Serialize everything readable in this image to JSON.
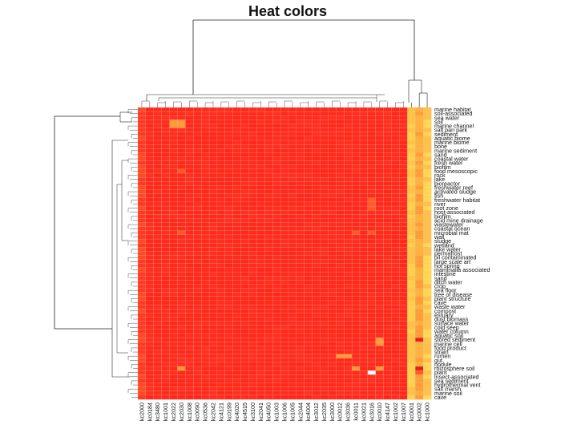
{
  "chart_data": {
    "type": "heatmap",
    "title": "Heat colors",
    "xlabel": "",
    "ylabel": "",
    "grid": true,
    "legend": "none",
    "colors": {
      "low": "#ff2a1c",
      "mid": "#ff8a2c",
      "high": "#ffd24a",
      "max": "#ffffff",
      "gridline": "#f7b0a6",
      "dendrogram": "#222222"
    },
    "columns": [
      "kc2000",
      "kc0184",
      "kc3480",
      "kc1001",
      "kc2022",
      "kc2030",
      "kc1008",
      "kc0090",
      "kc0536",
      "kc2042",
      "kc4121",
      "kc0199",
      "kc4020",
      "kc4515",
      "kc3100",
      "kc2041",
      "kc4050",
      "kc1003",
      "kc1006",
      "kc1005",
      "kc2044",
      "kc4004",
      "kc3012",
      "kc2035",
      "kc3000",
      "kc0012",
      "kc3036",
      "kc0011",
      "kc0021",
      "kc3016",
      "kc0010",
      "kc4147",
      "kc1002",
      "kc1007",
      "kc0001",
      "kc0002",
      "kc1000"
    ],
    "rows": [
      "marine habitat",
      "soil-associated",
      "sea water",
      "soil",
      "marine channel",
      "salt pan park",
      "sediment",
      "aquatic biome",
      "marine biome",
      "bone",
      "marine sediment",
      "sand",
      "coastal water",
      "fresh water",
      "biofilm",
      "food mesoscopic",
      "rock",
      "lake",
      "bioreactor",
      "freshwater reef",
      "activated sludge",
      "fish",
      "freshwater habitat",
      "river",
      "root zone",
      "host-associated",
      "biofilm",
      "acid mine drainage",
      "wastewater",
      "coastal ocean",
      "microbial mat",
      "wall",
      "sludge",
      "wetland",
      "lake water",
      "permafrost",
      "oil contaminated",
      "large scale art",
      "hot spring",
      "mammalia associated",
      "intestine",
      "sand",
      "ditch water",
      "crop",
      "sea floor",
      "tree of disease",
      "plant structure",
      "cave",
      "waste water",
      "compost",
      "estuary",
      "dust biomass",
      "surface water",
      "cold seep",
      "water column",
      "aquatic soil",
      "stored sediment",
      "marine cell",
      "food product",
      "strain",
      "rumen",
      "gut",
      "nodule",
      "rhizosphere soil",
      "plant",
      "insect-associated",
      "sea sediment",
      "hydrothermal vent",
      "salt marsh",
      "marine soil",
      "cave"
    ],
    "hot_cells": [
      {
        "row": 3,
        "col": 4,
        "level": 2
      },
      {
        "row": 3,
        "col": 5,
        "level": 2
      },
      {
        "row": 4,
        "col": 4,
        "level": 2
      },
      {
        "row": 4,
        "col": 5,
        "level": 2
      },
      {
        "row": 22,
        "col": 29,
        "level": 1
      },
      {
        "row": 23,
        "col": 29,
        "level": 1
      },
      {
        "row": 24,
        "col": 29,
        "level": 1
      },
      {
        "row": 30,
        "col": 5,
        "level": 1
      },
      {
        "row": 30,
        "col": 27,
        "level": 1
      },
      {
        "row": 30,
        "col": 29,
        "level": 1
      },
      {
        "row": 15,
        "col": 5,
        "level": 1
      },
      {
        "row": 56,
        "col": 30,
        "level": 2
      },
      {
        "row": 57,
        "col": 30,
        "level": 2
      },
      {
        "row": 60,
        "col": 25,
        "level": 2
      },
      {
        "row": 60,
        "col": 26,
        "level": 2
      },
      {
        "row": 63,
        "col": 5,
        "level": 2
      },
      {
        "row": 63,
        "col": 27,
        "level": 2
      },
      {
        "row": 63,
        "col": 30,
        "level": 2
      },
      {
        "row": 64,
        "col": 29,
        "level": 3
      },
      {
        "row": 63,
        "col": 35,
        "level": 1
      },
      {
        "row": 64,
        "col": 35,
        "level": 1
      }
    ]
  }
}
